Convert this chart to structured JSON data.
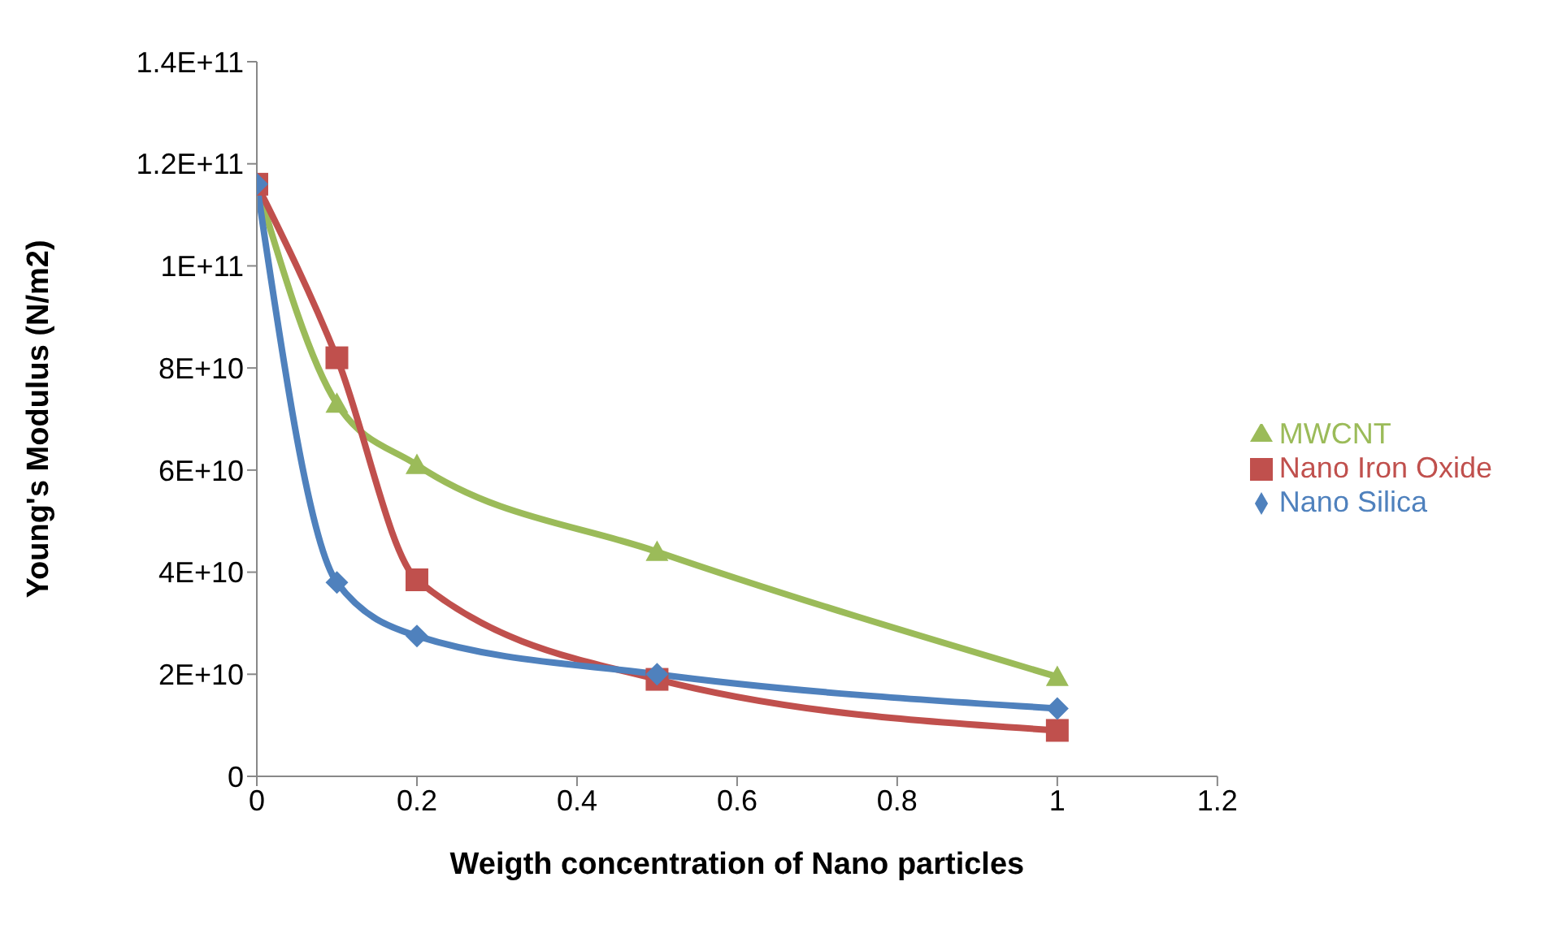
{
  "chart_data": {
    "type": "line",
    "xlabel": "Weigth concentration of Nano particles",
    "ylabel": "Young's Modulus (N/m2)",
    "xlim": [
      0,
      1.2
    ],
    "xticks": [
      0,
      0.2,
      0.4,
      0.6,
      0.8,
      1,
      1.2
    ],
    "ylim": [
      0,
      140000000000
    ],
    "yticks": [
      0,
      {
        "value": 20000000000,
        "label": "2E+10"
      },
      {
        "value": 40000000000,
        "label": "4E+10"
      },
      {
        "value": 60000000000,
        "label": "6E+10"
      },
      {
        "value": 80000000000,
        "label": "8E+10"
      },
      {
        "value": 100000000000,
        "label": "1E+11"
      },
      {
        "value": 120000000000,
        "label": "1.2E+11"
      },
      {
        "value": 140000000000,
        "label": "1.4E+11"
      }
    ],
    "x": [
      0,
      0.1,
      0.2,
      0.5,
      1
    ],
    "grid": false,
    "legend": "right",
    "line_style": "solid",
    "series": [
      {
        "name": "MWCNT",
        "color": "#9bbb59",
        "marker": "triangle",
        "values": [
          116000000000,
          73000000000,
          61000000000,
          44000000000,
          19500000000
        ]
      },
      {
        "name": "Nano Iron Oxide",
        "color": "#c0504d",
        "marker": "square",
        "values": [
          116000000000,
          82000000000,
          38500000000,
          19000000000,
          9000000000
        ]
      },
      {
        "name": "Nano Silica",
        "color": "#4f81bd",
        "marker": "diamond",
        "values": [
          116000000000,
          38000000000,
          27500000000,
          20000000000,
          13300000000
        ]
      }
    ]
  }
}
